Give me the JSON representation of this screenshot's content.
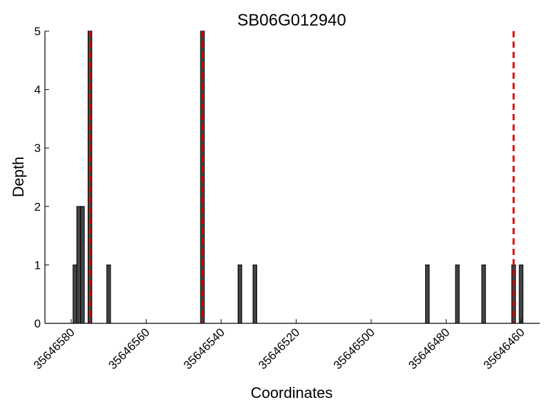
{
  "chart_data": {
    "type": "bar",
    "title": "SB06G012940",
    "xlabel": "Coordinates",
    "ylabel": "Depth",
    "x_axis_reversed": true,
    "xlim": [
      35646587,
      35646455
    ],
    "ylim": [
      0,
      5
    ],
    "xticks": [
      35646580,
      35646560,
      35646540,
      35646520,
      35646500,
      35646480,
      35646460
    ],
    "xtick_labels": [
      "35646580",
      "35646560",
      "35646540",
      "35646520",
      "35646500",
      "35646480",
      "35646460"
    ],
    "yticks": [
      0,
      1,
      2,
      3,
      4,
      5
    ],
    "ytick_labels": [
      "0",
      "1",
      "2",
      "3",
      "4",
      "5"
    ],
    "grid": false,
    "bar_color": "#444444",
    "bars": [
      {
        "x": 35646579,
        "value": 1
      },
      {
        "x": 35646578,
        "value": 2
      },
      {
        "x": 35646577,
        "value": 2
      },
      {
        "x": 35646575,
        "value": 5
      },
      {
        "x": 35646570,
        "value": 1
      },
      {
        "x": 35646545,
        "value": 5
      },
      {
        "x": 35646535,
        "value": 1
      },
      {
        "x": 35646531,
        "value": 1
      },
      {
        "x": 35646485,
        "value": 1
      },
      {
        "x": 35646477,
        "value": 1
      },
      {
        "x": 35646470,
        "value": 1
      },
      {
        "x": 35646462,
        "value": 1
      },
      {
        "x": 35646460,
        "value": 1
      }
    ],
    "reference_lines": {
      "color": "#dd0000",
      "style": "dashed",
      "x": [
        35646575,
        35646545,
        35646462
      ]
    }
  }
}
